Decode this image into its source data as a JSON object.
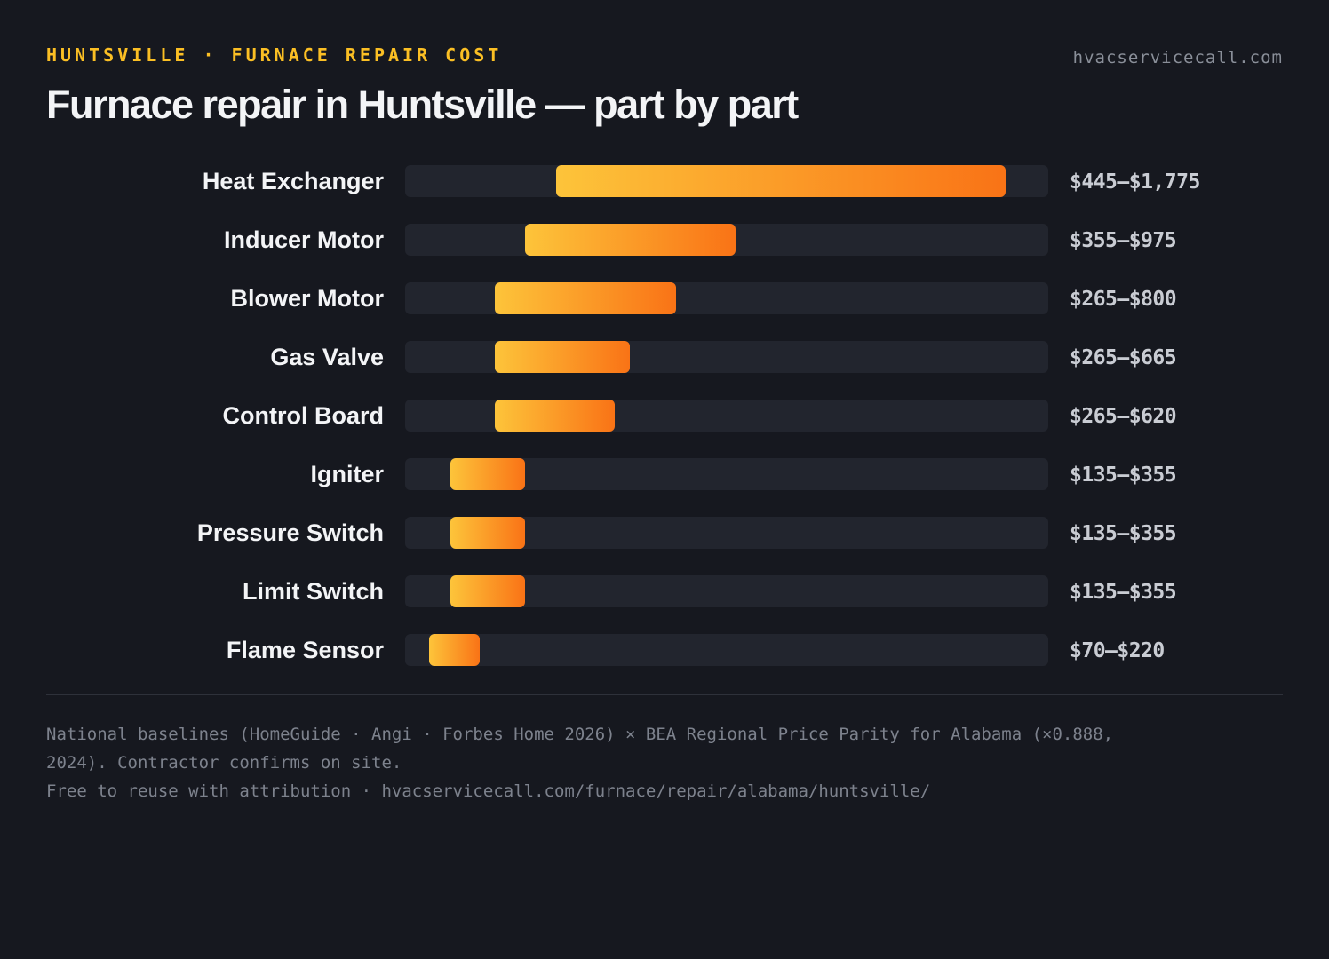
{
  "header": {
    "eyebrow": "HUNTSVILLE · FURNACE REPAIR COST",
    "site": "hvacservicecall.com",
    "title": "Furnace repair in Huntsville — part by part"
  },
  "colors": {
    "background": "#16181f",
    "accent": "#fbbf24",
    "bar_start": "#fdc43a",
    "bar_end": "#f97316",
    "track": "#22252e"
  },
  "chart_data": {
    "type": "bar",
    "orientation": "horizontal-range",
    "title": "Furnace repair in Huntsville — part by part",
    "xlim": [
      0,
      1900
    ],
    "unit": "USD",
    "grid": false,
    "categories": [
      "Heat Exchanger",
      "Inducer Motor",
      "Blower Motor",
      "Gas Valve",
      "Control Board",
      "Igniter",
      "Pressure Switch",
      "Limit Switch",
      "Flame Sensor"
    ],
    "series": [
      {
        "low": [
          445,
          355,
          265,
          265,
          265,
          135,
          135,
          135,
          70
        ],
        "high": [
          1775,
          975,
          800,
          665,
          620,
          355,
          355,
          355,
          220
        ]
      }
    ],
    "value_labels": [
      "$445–$1,775",
      "$355–$975",
      "$265–$800",
      "$265–$665",
      "$265–$620",
      "$135–$355",
      "$135–$355",
      "$135–$355",
      "$70–$220"
    ]
  },
  "footer": {
    "note_line1": "National baselines (HomeGuide · Angi · Forbes Home 2026) × BEA Regional Price Parity for Alabama (×0.888,",
    "note_line2": "2024). Contractor confirms on site.",
    "note_line3": "Free to reuse with attribution · hvacservicecall.com/furnace/repair/alabama/huntsville/"
  }
}
